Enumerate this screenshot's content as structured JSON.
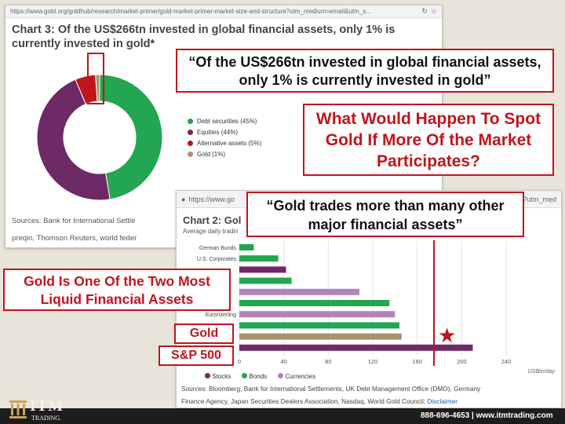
{
  "top_shot": {
    "url": "https://www.gold.org/goldhub/research/market-primer/gold-market-primer-market-size-and-structure?utm_medium=email&utm_s...",
    "title_line1": "Chart 3: Of the US$266tn invested in global financial assets, only 1% is",
    "title_line2": "currently invested in gold*",
    "legend": [
      {
        "label": "Debt securities (45%)",
        "color": "#22a652"
      },
      {
        "label": "Equities (44%)",
        "color": "#6e2a66"
      },
      {
        "label": "Alternative assets (5%)",
        "color": "#c0151c"
      },
      {
        "label": "Gold (1%)",
        "color": "#a8946a"
      }
    ],
    "sources_line1": "Sources: Bank for International Settle",
    "sources_line2": "preqin, Thomson Reuters, world feder"
  },
  "chart_data": [
    {
      "type": "pie",
      "title": "Chart 3: Of the US$266tn invested in global financial assets, only 1% is currently invested in gold*",
      "categories": [
        "Debt securities",
        "Equities",
        "Alternative assets",
        "Gold"
      ],
      "values": [
        45,
        44,
        5,
        1
      ],
      "colors": [
        "#22a652",
        "#6e2a66",
        "#c0151c",
        "#a8946a"
      ]
    },
    {
      "type": "bar",
      "title": "Chart 2: Gold",
      "subtitle": "Average daily tradin",
      "categories": [
        "German Bunds",
        "U.S. Corporates",
        "",
        "",
        "",
        "",
        "Euro/sterling",
        "",
        "",
        ""
      ],
      "values": [
        13,
        35,
        42,
        47,
        108,
        135,
        140,
        144,
        146,
        210
      ],
      "groups": [
        "Bonds",
        "Bonds",
        "Stocks",
        "Bonds",
        "Currencies",
        "Bonds",
        "Currencies",
        "Bonds",
        "Gold",
        "Stocks"
      ],
      "xlim": [
        0,
        240
      ],
      "xticks": [
        "0",
        "40",
        "80",
        "120",
        "160",
        "200",
        "240"
      ],
      "xlabel": "US$bn/day",
      "legend": [
        "Stocks",
        "Bonds",
        "Currencies"
      ]
    }
  ],
  "bottom_shot": {
    "url": "https://www.go",
    "url_tail": "e?utm_med",
    "title": "Chart 2: Gol",
    "subtitle": "Average daily tradin",
    "unit": "US$bn/day",
    "legend": [
      {
        "label": "Stocks",
        "color": "#6e2a66"
      },
      {
        "label": "Bonds",
        "color": "#22a652"
      },
      {
        "label": "Currencies",
        "color": "#b384b8"
      }
    ],
    "sources_line1": "Sources: Bloomberg, Bank for International Settlements, UK Debt Management Office (DMO), Germany",
    "sources_line2": "Finance Agency, Japan Securities Dealers Association, Nasdaq, World Gold Council;",
    "disclaimer": "Disclaimer"
  },
  "colors": {
    "stocks": "#6e2a66",
    "bonds": "#22a652",
    "currencies": "#b384b8",
    "gold": "#a8946a",
    "alt": "#c0151c",
    "callout_red": "#c0151c"
  },
  "callouts": {
    "quote1": "“Of the US$266tn invested in global financial assets, only 1% is currently invested in gold”",
    "question": "What Would Happen To Spot Gold If More Of the Market Participates?",
    "quote2": "“Gold trades more than many other major financial assets”",
    "liquid": "Gold Is One Of the Two Most Liquid Financial Assets",
    "gold_label": "Gold",
    "sp500_label": "S&P 500"
  },
  "footer": {
    "logo": "ITM",
    "logo_sub": "TRADING.",
    "contact": "888-696-4653  |  www.itmtrading.com"
  }
}
